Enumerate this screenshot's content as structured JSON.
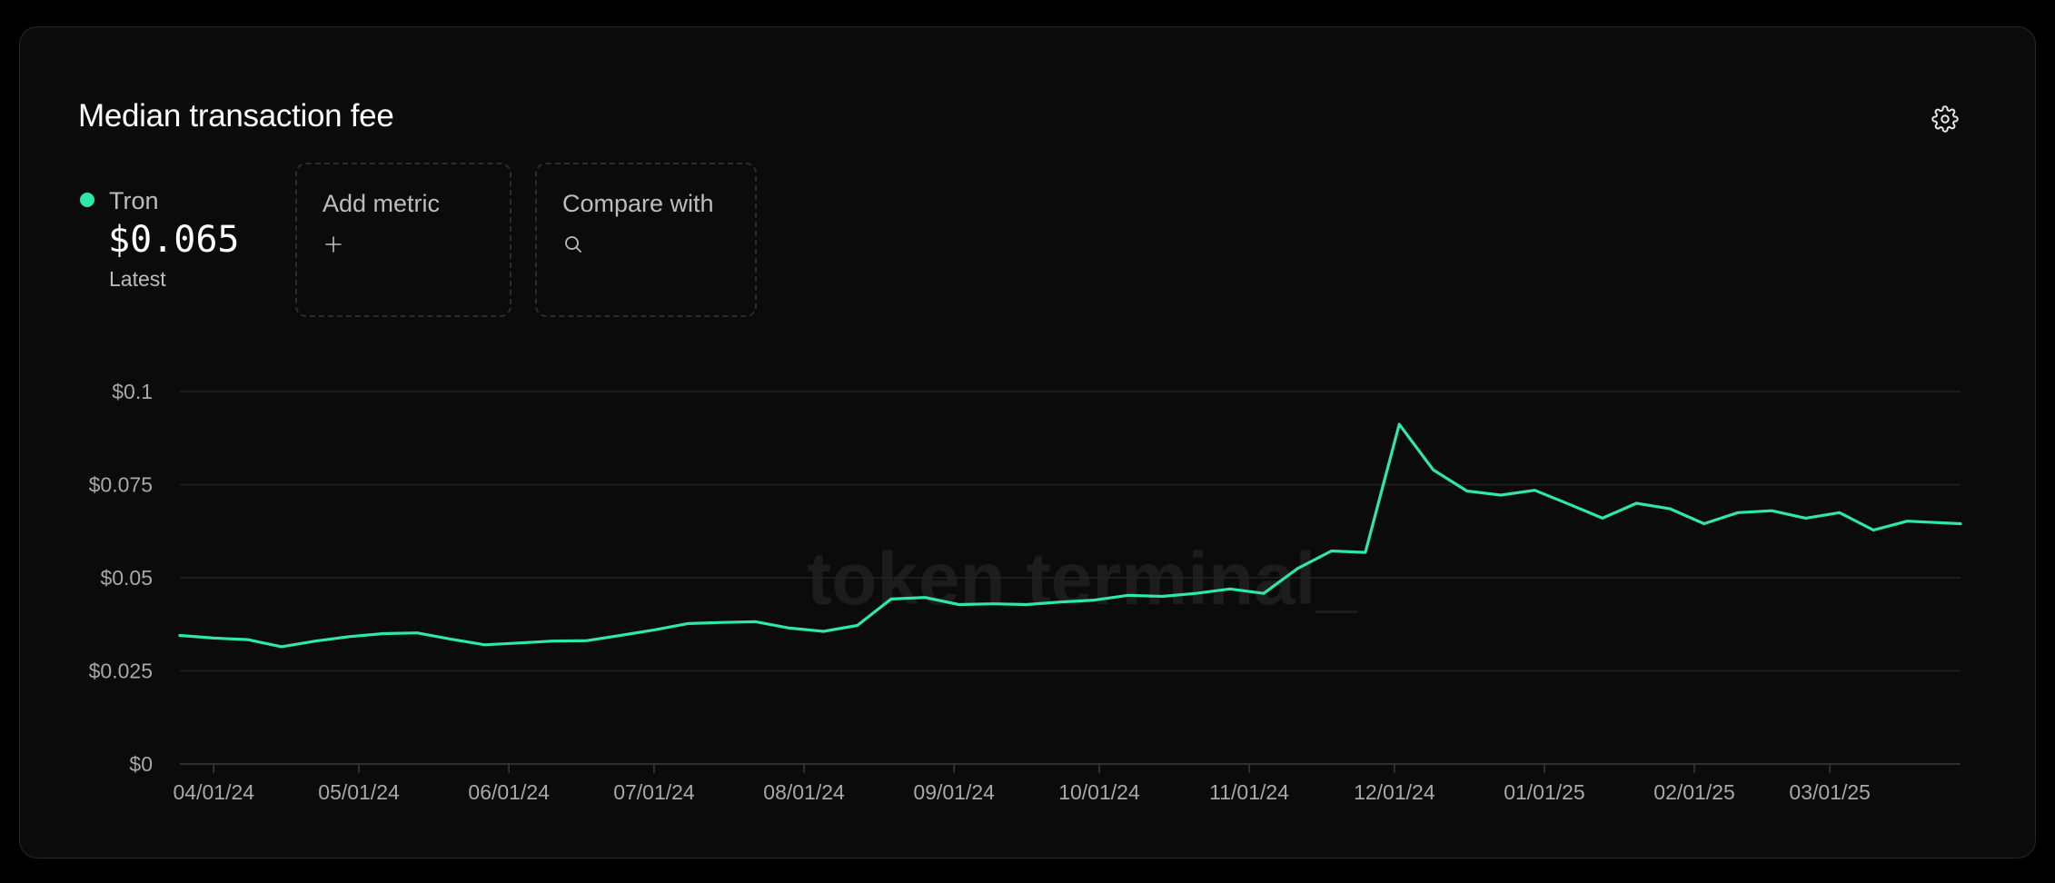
{
  "header": {
    "title": "Median transaction fee"
  },
  "legend": {
    "series_name": "Tron",
    "series_value": "$0.065",
    "series_sub": "Latest",
    "series_color": "#2ee8a8"
  },
  "controls": {
    "add_metric_label": "Add metric",
    "compare_label": "Compare with"
  },
  "watermark": "token terminal_",
  "chart_data": {
    "type": "line",
    "title": "Median transaction fee",
    "xlabel": "",
    "ylabel": "",
    "ylim": [
      0,
      0.1
    ],
    "xlim": [
      "2024-03-25",
      "2025-03-28"
    ],
    "grid": true,
    "y_ticks": [
      {
        "value": 0.1,
        "label": "$0.1"
      },
      {
        "value": 0.075,
        "label": "$0.075"
      },
      {
        "value": 0.05,
        "label": "$0.05"
      },
      {
        "value": 0.025,
        "label": "$0.025"
      },
      {
        "value": 0,
        "label": "$0"
      }
    ],
    "x_ticks": [
      {
        "date": "2024-04-01",
        "label": "04/01/24"
      },
      {
        "date": "2024-05-01",
        "label": "05/01/24"
      },
      {
        "date": "2024-06-01",
        "label": "06/01/24"
      },
      {
        "date": "2024-07-01",
        "label": "07/01/24"
      },
      {
        "date": "2024-08-01",
        "label": "08/01/24"
      },
      {
        "date": "2024-09-01",
        "label": "09/01/24"
      },
      {
        "date": "2024-10-01",
        "label": "10/01/24"
      },
      {
        "date": "2024-11-01",
        "label": "11/01/24"
      },
      {
        "date": "2024-12-01",
        "label": "12/01/24"
      },
      {
        "date": "2025-01-01",
        "label": "01/01/25"
      },
      {
        "date": "2025-02-01",
        "label": "02/01/25"
      },
      {
        "date": "2025-03-01",
        "label": "03/01/25"
      }
    ],
    "series": [
      {
        "name": "Tron",
        "color": "#2ee8a8",
        "points": [
          [
            "2024-03-25",
            0.0345
          ],
          [
            "2024-04-01",
            0.0338
          ],
          [
            "2024-04-08",
            0.0334
          ],
          [
            "2024-04-15",
            0.0315
          ],
          [
            "2024-04-22",
            0.033
          ],
          [
            "2024-04-29",
            0.0342
          ],
          [
            "2024-05-06",
            0.035
          ],
          [
            "2024-05-13",
            0.0352
          ],
          [
            "2024-05-20",
            0.0335
          ],
          [
            "2024-05-27",
            0.032
          ],
          [
            "2024-06-03",
            0.0325
          ],
          [
            "2024-06-10",
            0.033
          ],
          [
            "2024-06-17",
            0.0331
          ],
          [
            "2024-06-24",
            0.0345
          ],
          [
            "2024-07-01",
            0.036
          ],
          [
            "2024-07-08",
            0.0377
          ],
          [
            "2024-07-15",
            0.038
          ],
          [
            "2024-07-22",
            0.0382
          ],
          [
            "2024-07-29",
            0.0365
          ],
          [
            "2024-08-05",
            0.0356
          ],
          [
            "2024-08-12",
            0.0372
          ],
          [
            "2024-08-19",
            0.0443
          ],
          [
            "2024-08-26",
            0.0447
          ],
          [
            "2024-09-02",
            0.0428
          ],
          [
            "2024-09-09",
            0.043
          ],
          [
            "2024-09-16",
            0.0428
          ],
          [
            "2024-09-23",
            0.0435
          ],
          [
            "2024-09-30",
            0.044
          ],
          [
            "2024-10-07",
            0.0453
          ],
          [
            "2024-10-14",
            0.045
          ],
          [
            "2024-10-21",
            0.0458
          ],
          [
            "2024-10-28",
            0.047
          ],
          [
            "2024-11-04",
            0.0458
          ],
          [
            "2024-11-11",
            0.0525
          ],
          [
            "2024-11-18",
            0.0572
          ],
          [
            "2024-11-25",
            0.0568
          ],
          [
            "2024-12-02",
            0.0912
          ],
          [
            "2024-12-09",
            0.079
          ],
          [
            "2024-12-16",
            0.0733
          ],
          [
            "2024-12-23",
            0.0722
          ],
          [
            "2024-12-30",
            0.0735
          ],
          [
            "2025-01-06",
            0.0698
          ],
          [
            "2025-01-13",
            0.066
          ],
          [
            "2025-01-20",
            0.07
          ],
          [
            "2025-01-27",
            0.0685
          ],
          [
            "2025-02-03",
            0.0645
          ],
          [
            "2025-02-10",
            0.0675
          ],
          [
            "2025-02-17",
            0.068
          ],
          [
            "2025-02-24",
            0.066
          ],
          [
            "2025-03-03",
            0.0675
          ],
          [
            "2025-03-10",
            0.0628
          ],
          [
            "2025-03-17",
            0.0652
          ],
          [
            "2025-03-28",
            0.0645
          ]
        ]
      }
    ]
  }
}
